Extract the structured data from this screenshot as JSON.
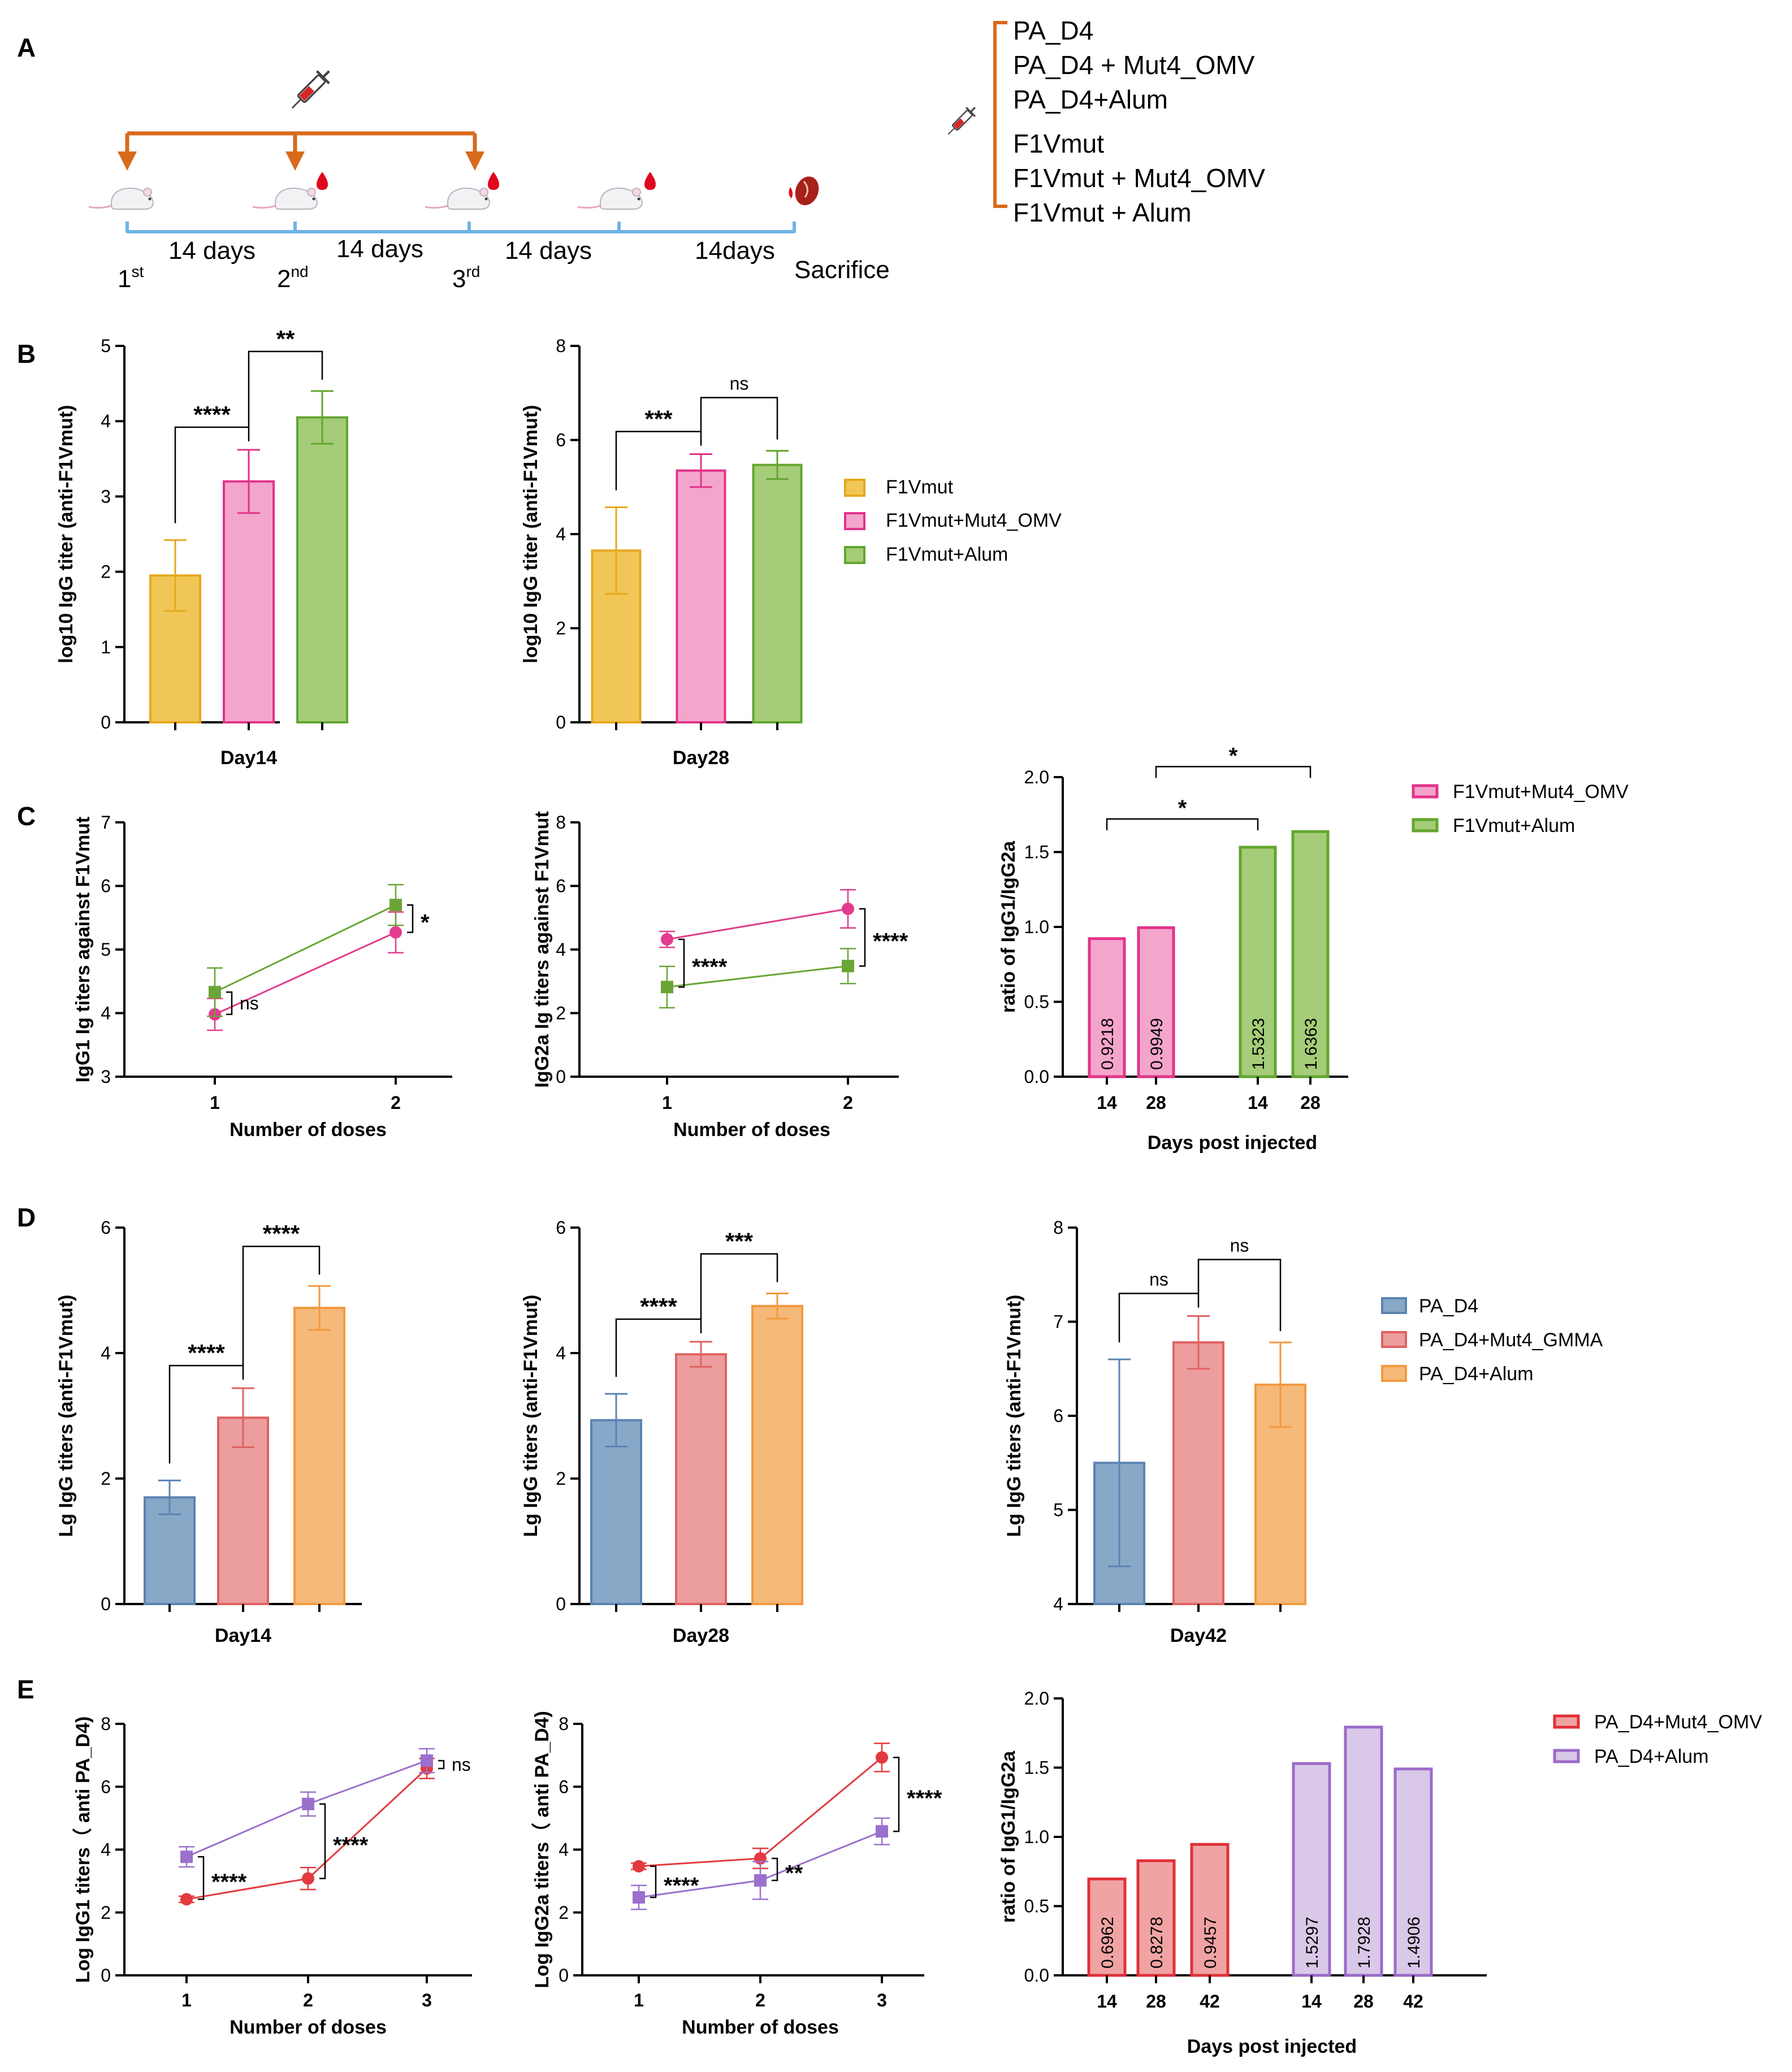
{
  "panel_labels": [
    "A",
    "B",
    "C",
    "D",
    "E"
  ],
  "schematic": {
    "intervals": [
      "14 days",
      "14 days",
      "14 days",
      "14days"
    ],
    "doses": [
      {
        "num": "1",
        "suffix": "st"
      },
      {
        "num": "2",
        "suffix": "nd"
      },
      {
        "num": "3",
        "suffix": "rd"
      }
    ],
    "sacrifice": "Sacrifice",
    "groups": [
      "PA_D4",
      "PA_D4 + Mut4_OMV",
      "PA_D4+Alum",
      "F1Vmut",
      "F1Vmut + Mut4_OMV",
      "F1Vmut + Alum"
    ]
  },
  "legends": {
    "B": [
      "F1Vmut",
      "F1Vmut+Mut4_OMV",
      "F1Vmut+Alum"
    ],
    "C": [
      "F1Vmut+Mut4_OMV",
      "F1Vmut+Alum"
    ],
    "D": [
      "PA_D4",
      "PA_D4+Mut4_GMMA",
      "PA_D4+Alum"
    ],
    "E": [
      "PA_D4+Mut4_OMV",
      "PA_D4+Alum"
    ]
  },
  "colors": {
    "yellow": "#f0c756",
    "yellow_edge": "#e6a81e",
    "pink": "#f4a5cb",
    "pink_edge": "#e2338a",
    "green": "#a5cc78",
    "green_edge": "#62a630",
    "blue": "#88a8c8",
    "blue_edge": "#5b84b1",
    "salmon": "#ec9d9d",
    "salmon_edge": "#e06262",
    "orange": "#f5b979",
    "orange_edge": "#f19a40",
    "red_fill": "#f0a3a3",
    "red_edge": "#e0303a",
    "purple_fill": "#d9c8e8",
    "purple_edge": "#9b6bc9",
    "arrow": "#d86a1c",
    "timeline": "#6cb5e4"
  },
  "chart_data": [
    {
      "id": "B1",
      "panel": "B",
      "type": "bar",
      "title": "",
      "xlabel": "Day14",
      "ylabel": "log10 IgG titer (anti-F1Vmut)",
      "ylim": [
        0,
        5
      ],
      "yticks": [
        "0",
        "1",
        "2",
        "3",
        "4",
        "5"
      ],
      "series": [
        {
          "name": "F1Vmut",
          "value": 1.95,
          "err": 0.47
        },
        {
          "name": "F1Vmut+Mut4_OMV",
          "value": 3.2,
          "err": 0.42
        },
        {
          "name": "F1Vmut+Alum",
          "value": 4.05,
          "err": 0.35
        }
      ],
      "significance": [
        {
          "from": 0,
          "to": 1,
          "label": "****"
        },
        {
          "from": 1,
          "to": 2,
          "label": "**"
        }
      ]
    },
    {
      "id": "B2",
      "panel": "B",
      "type": "bar",
      "title": "",
      "xlabel": "Day28",
      "ylabel": "log10 IgG titer (anti-F1Vmut)",
      "ylim": [
        0,
        8
      ],
      "yticks": [
        "0",
        "2",
        "4",
        "6",
        "8"
      ],
      "series": [
        {
          "name": "F1Vmut",
          "value": 3.65,
          "err": 0.92
        },
        {
          "name": "F1Vmut+Mut4_OMV",
          "value": 5.35,
          "err": 0.35
        },
        {
          "name": "F1Vmut+Alum",
          "value": 5.47,
          "err": 0.3
        }
      ],
      "significance": [
        {
          "from": 0,
          "to": 1,
          "label": "***"
        },
        {
          "from": 1,
          "to": 2,
          "label": "ns"
        }
      ]
    },
    {
      "id": "C1",
      "panel": "C",
      "type": "line",
      "title": "",
      "xlabel": "Number of doses",
      "ylabel": "IgG1 Ig titers against F1Vmut",
      "x": [
        1,
        2
      ],
      "xticks": [
        "1",
        "2"
      ],
      "ylim": [
        3,
        7
      ],
      "yticks": [
        "3",
        "4",
        "5",
        "6",
        "7"
      ],
      "series": [
        {
          "name": "F1Vmut+Mut4_OMV",
          "marker": "circle",
          "values": [
            3.98,
            5.27
          ],
          "err": [
            0.25,
            0.32
          ]
        },
        {
          "name": "F1Vmut+Alum",
          "marker": "square",
          "values": [
            4.33,
            5.7
          ],
          "err": [
            0.38,
            0.32
          ]
        }
      ],
      "significance": [
        {
          "x": 1,
          "label": "ns"
        },
        {
          "x": 2,
          "label": "*"
        }
      ]
    },
    {
      "id": "C2",
      "panel": "C",
      "type": "line",
      "title": "",
      "xlabel": "Number of doses",
      "ylabel": "IgG2a Ig titers against F1Vmut",
      "x": [
        1,
        2
      ],
      "xticks": [
        "1",
        "2"
      ],
      "ylim": [
        0,
        8
      ],
      "yticks": [
        "0",
        "2",
        "4",
        "6",
        "8"
      ],
      "series": [
        {
          "name": "F1Vmut+Mut4_OMV",
          "marker": "circle",
          "values": [
            4.32,
            5.28
          ],
          "err": [
            0.25,
            0.6
          ]
        },
        {
          "name": "F1Vmut+Alum",
          "marker": "square",
          "values": [
            2.82,
            3.48
          ],
          "err": [
            0.65,
            0.55
          ]
        }
      ],
      "significance": [
        {
          "x": 1,
          "label": "****"
        },
        {
          "x": 2,
          "label": "****"
        }
      ]
    },
    {
      "id": "C3",
      "panel": "C",
      "type": "bar",
      "title": "",
      "xlabel": "Days post injected",
      "ylabel": "ratio of IgG1/IgG2a",
      "ylim": [
        0,
        2.0
      ],
      "yticks": [
        "0.0",
        "0.5",
        "1.0",
        "1.5",
        "2.0"
      ],
      "categories": [
        "14",
        "28",
        "14",
        "28"
      ],
      "values": [
        0.9218,
        0.9949,
        1.5323,
        1.6363
      ],
      "labels": [
        "0.9218",
        "0.9949",
        "1.5323",
        "1.6363"
      ],
      "groups": [
        "F1Vmut+Mut4_OMV",
        "F1Vmut+Mut4_OMV",
        "F1Vmut+Alum",
        "F1Vmut+Alum"
      ],
      "significance": [
        {
          "from": 0,
          "to": 2,
          "label": "*"
        },
        {
          "from": 1,
          "to": 3,
          "label": "*"
        }
      ]
    },
    {
      "id": "D1",
      "panel": "D",
      "type": "bar",
      "title": "",
      "xlabel": "Day14",
      "ylabel": "Lg IgG titers (anti-F1Vmut)",
      "ylim": [
        0,
        6
      ],
      "yticks": [
        "0",
        "2",
        "4",
        "6"
      ],
      "series": [
        {
          "name": "PA_D4",
          "value": 1.7,
          "err": 0.27
        },
        {
          "name": "PA_D4+Mut4_GMMA",
          "value": 2.97,
          "err": 0.47
        },
        {
          "name": "PA_D4+Alum",
          "value": 4.72,
          "err": 0.35
        }
      ],
      "significance": [
        {
          "from": 0,
          "to": 1,
          "label": "****"
        },
        {
          "from": 1,
          "to": 2,
          "label": "****"
        }
      ]
    },
    {
      "id": "D2",
      "panel": "D",
      "type": "bar",
      "title": "",
      "xlabel": "Day28",
      "ylabel": "Lg IgG titers (anti-F1Vmut)",
      "ylim": [
        0,
        6
      ],
      "yticks": [
        "0",
        "2",
        "4",
        "6"
      ],
      "series": [
        {
          "name": "PA_D4",
          "value": 2.93,
          "err": 0.42
        },
        {
          "name": "PA_D4+Mut4_GMMA",
          "value": 3.98,
          "err": 0.2
        },
        {
          "name": "PA_D4+Alum",
          "value": 4.75,
          "err": 0.2
        }
      ],
      "significance": [
        {
          "from": 0,
          "to": 1,
          "label": "****"
        },
        {
          "from": 1,
          "to": 2,
          "label": "***"
        }
      ]
    },
    {
      "id": "D3",
      "panel": "D",
      "type": "bar",
      "title": "",
      "xlabel": "Day42",
      "ylabel": "Lg IgG titers (anti-F1Vmut)",
      "ylim": [
        4,
        8
      ],
      "yticks": [
        "4",
        "5",
        "6",
        "7",
        "8"
      ],
      "series": [
        {
          "name": "PA_D4",
          "value": 5.5,
          "err": 1.1
        },
        {
          "name": "PA_D4+Mut4_GMMA",
          "value": 6.78,
          "err": 0.28
        },
        {
          "name": "PA_D4+Alum",
          "value": 6.33,
          "err": 0.45
        }
      ],
      "significance": [
        {
          "from": 0,
          "to": 1,
          "label": "ns"
        },
        {
          "from": 1,
          "to": 2,
          "label": "ns"
        }
      ]
    },
    {
      "id": "E1",
      "panel": "E",
      "type": "line",
      "title": "",
      "xlabel": "Number of doses",
      "ylabel": "Log IgG1 titers（ anti PA_D4)",
      "x": [
        1,
        2,
        3
      ],
      "xticks": [
        "1",
        "2",
        "3"
      ],
      "ylim": [
        0,
        8
      ],
      "yticks": [
        "0",
        "2",
        "4",
        "6",
        "8"
      ],
      "series": [
        {
          "name": "PA_D4+Mut4_OMV",
          "marker": "circle",
          "values": [
            2.42,
            3.08,
            6.58
          ],
          "err": [
            0.1,
            0.35,
            0.32
          ]
        },
        {
          "name": "PA_D4+Alum",
          "marker": "square",
          "values": [
            3.77,
            5.45,
            6.83
          ],
          "err": [
            0.32,
            0.38,
            0.38
          ]
        }
      ],
      "significance": [
        {
          "x": 1,
          "label": "****"
        },
        {
          "x": 2,
          "label": "****"
        },
        {
          "x": 3,
          "label": "ns"
        }
      ]
    },
    {
      "id": "E2",
      "panel": "E",
      "type": "line",
      "title": "",
      "xlabel": "Number of doses",
      "ylabel": "Log IgG2a titers（ anti PA_D4)",
      "x": [
        1,
        2,
        3
      ],
      "xticks": [
        "1",
        "2",
        "3"
      ],
      "ylim": [
        0,
        8
      ],
      "yticks": [
        "0",
        "2",
        "4",
        "6",
        "8"
      ],
      "series": [
        {
          "name": "PA_D4+Mut4_OMV",
          "marker": "circle",
          "values": [
            3.47,
            3.72,
            6.93
          ],
          "err": [
            0.1,
            0.32,
            0.45
          ]
        },
        {
          "name": "PA_D4+Alum",
          "marker": "square",
          "values": [
            2.48,
            3.02,
            4.58
          ],
          "err": [
            0.38,
            0.6,
            0.42
          ]
        }
      ],
      "significance": [
        {
          "x": 1,
          "label": "****"
        },
        {
          "x": 2,
          "label": "**"
        },
        {
          "x": 3,
          "label": "****"
        }
      ]
    },
    {
      "id": "E3",
      "panel": "E",
      "type": "bar",
      "title": "",
      "xlabel": "Days post injected",
      "ylabel": "ratio of IgG1/IgG2a",
      "ylim": [
        0,
        2.0
      ],
      "yticks": [
        "0.0",
        "0.5",
        "1.0",
        "1.5",
        "2.0"
      ],
      "categories": [
        "14",
        "28",
        "42",
        "14",
        "28",
        "42"
      ],
      "values": [
        0.6962,
        0.8278,
        0.9457,
        1.5297,
        1.7928,
        1.4906
      ],
      "labels": [
        "0.6962",
        "0.8278",
        "0.9457",
        "1.5297",
        "1.7928",
        "1.4906"
      ],
      "groups": [
        "PA_D4+Mut4_OMV",
        "PA_D4+Mut4_OMV",
        "PA_D4+Mut4_OMV",
        "PA_D4+Alum",
        "PA_D4+Alum",
        "PA_D4+Alum"
      ],
      "significance": []
    }
  ]
}
